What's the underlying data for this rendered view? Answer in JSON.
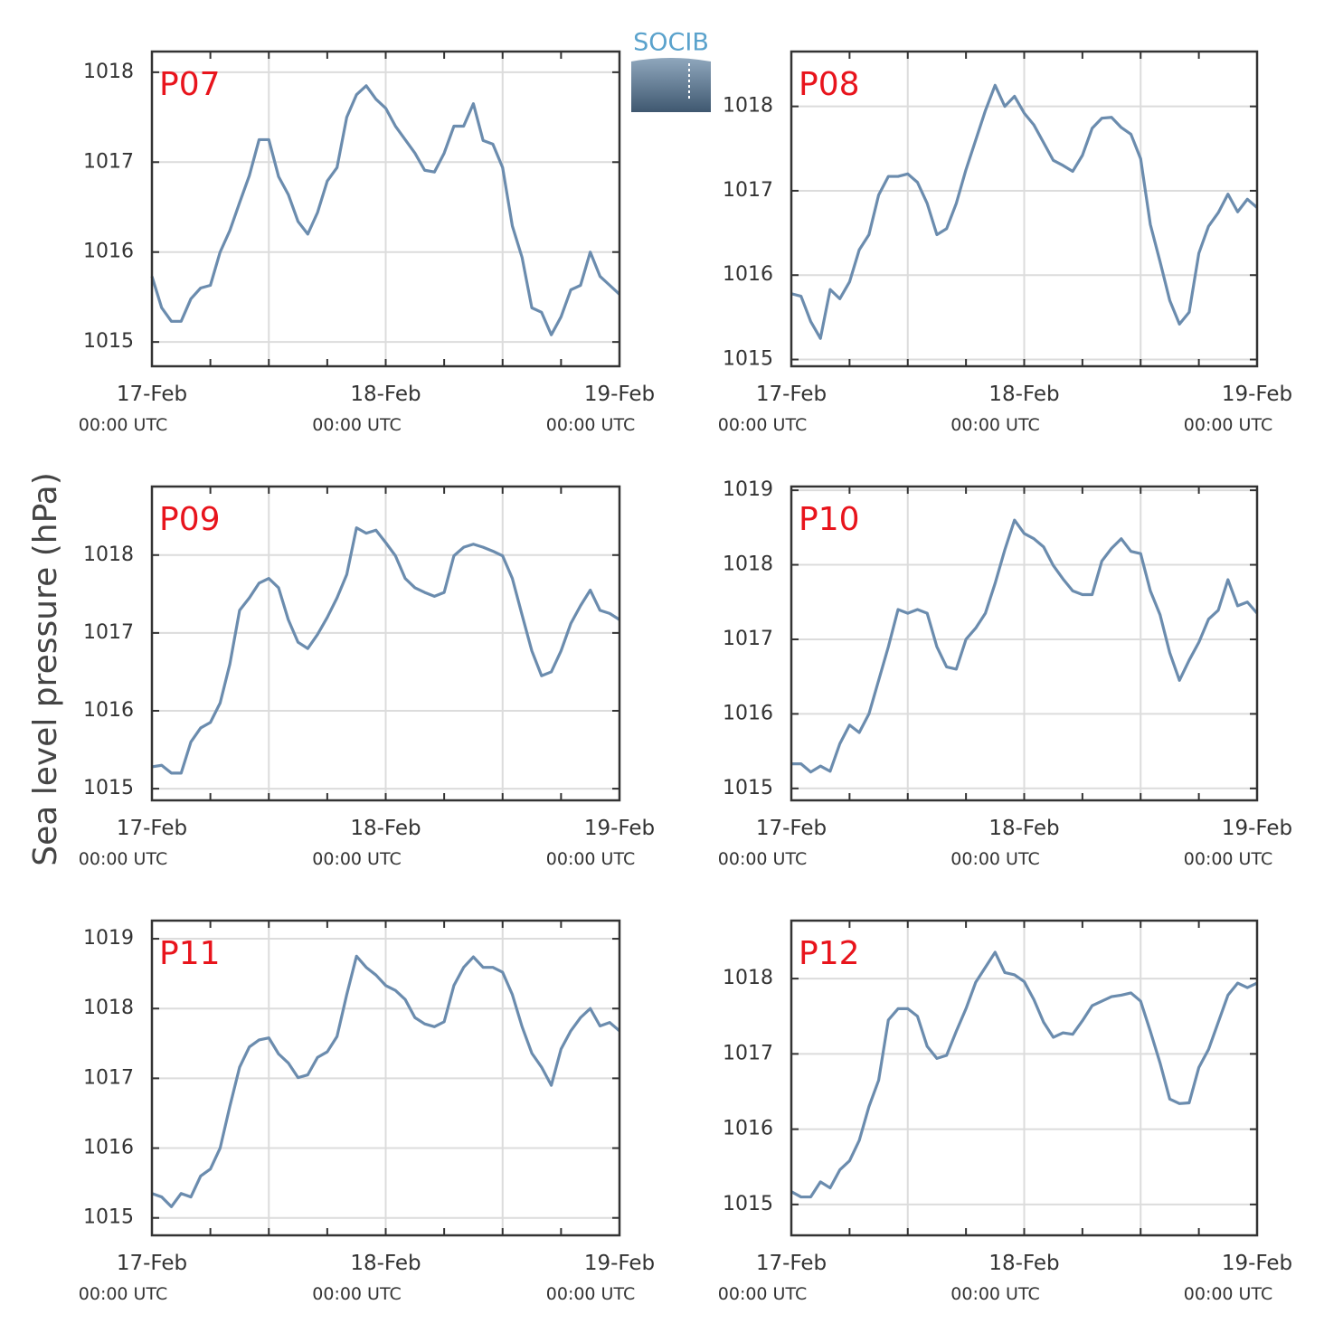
{
  "ylabel": "Sea level pressure (hPa)",
  "logo_text": "SOCIB",
  "chart_data": [
    {
      "type": "line",
      "title": "P07",
      "title_color": "#e8141c",
      "color": "#6b8cae",
      "x": [
        0,
        1,
        2,
        3,
        4,
        5,
        6,
        7,
        8,
        9,
        10,
        11,
        12,
        13,
        14,
        15,
        16,
        17,
        18,
        19,
        20,
        21,
        22,
        23,
        24,
        25,
        26,
        27,
        28,
        29,
        30,
        31,
        32,
        33,
        34,
        35,
        36,
        37,
        38,
        39,
        40,
        41,
        42,
        43,
        44,
        45,
        46,
        47,
        48
      ],
      "values": [
        1015.73,
        1015.38,
        1015.23,
        1015.23,
        1015.48,
        1015.6,
        1015.63,
        1016.0,
        1016.24,
        1016.55,
        1016.85,
        1017.25,
        1017.25,
        1016.84,
        1016.64,
        1016.34,
        1016.2,
        1016.44,
        1016.79,
        1016.94,
        1017.5,
        1017.75,
        1017.85,
        1017.7,
        1017.6,
        1017.4,
        1017.25,
        1017.1,
        1016.91,
        1016.89,
        1017.1,
        1017.4,
        1017.4,
        1017.65,
        1017.24,
        1017.2,
        1016.94,
        1016.29,
        1015.94,
        1015.38,
        1015.33,
        1015.08,
        1015.28,
        1015.58,
        1015.63,
        1016.0,
        1015.73,
        1015.63,
        1015.53
      ],
      "xlim": [
        0,
        48
      ],
      "xticks": [
        {
          "value": 0,
          "label": "17-Feb\n00:00 UTC"
        },
        {
          "value": 24,
          "label": "18-Feb\n00:00 UTC"
        },
        {
          "value": 48,
          "label": "19-Feb\n00:00 UTC"
        }
      ],
      "xminor": [
        6,
        12,
        18,
        30,
        36,
        42
      ],
      "xgrid": [
        12,
        24,
        36
      ],
      "ylim": [
        1014.73,
        1018.23
      ],
      "yticks": [
        1015,
        1016,
        1017,
        1018
      ],
      "grid": true
    },
    {
      "type": "line",
      "title": "P08",
      "title_color": "#e8141c",
      "color": "#6b8cae",
      "x": [
        0,
        1,
        2,
        3,
        4,
        5,
        6,
        7,
        8,
        9,
        10,
        11,
        12,
        13,
        14,
        15,
        16,
        17,
        18,
        19,
        20,
        21,
        22,
        23,
        24,
        25,
        26,
        27,
        28,
        29,
        30,
        31,
        32,
        33,
        34,
        35,
        36,
        37,
        38,
        39,
        40,
        41,
        42,
        43,
        44,
        45,
        46,
        47,
        48
      ],
      "values": [
        1015.78,
        1015.75,
        1015.45,
        1015.25,
        1015.83,
        1015.72,
        1015.92,
        1016.3,
        1016.48,
        1016.95,
        1017.17,
        1017.17,
        1017.2,
        1017.1,
        1016.85,
        1016.48,
        1016.55,
        1016.85,
        1017.25,
        1017.6,
        1017.95,
        1018.25,
        1018.0,
        1018.12,
        1017.92,
        1017.78,
        1017.57,
        1017.36,
        1017.3,
        1017.23,
        1017.42,
        1017.74,
        1017.86,
        1017.87,
        1017.75,
        1017.67,
        1017.38,
        1016.6,
        1016.16,
        1015.7,
        1015.42,
        1015.56,
        1016.26,
        1016.58,
        1016.74,
        1016.96,
        1016.75,
        1016.9,
        1016.8
      ],
      "xlim": [
        0,
        48
      ],
      "xticks": [
        {
          "value": 0,
          "label": "17-Feb\n00:00 UTC"
        },
        {
          "value": 24,
          "label": "18-Feb\n00:00 UTC"
        },
        {
          "value": 48,
          "label": "19-Feb\n00:00 UTC"
        }
      ],
      "xminor": [
        6,
        12,
        18,
        30,
        36,
        42
      ],
      "xgrid": [
        12,
        24,
        36
      ],
      "ylim": [
        1014.92,
        1018.65
      ],
      "yticks": [
        1015,
        1016,
        1017,
        1018
      ],
      "grid": true
    },
    {
      "type": "line",
      "title": "P09",
      "title_color": "#e8141c",
      "color": "#6b8cae",
      "x": [
        0,
        1,
        2,
        3,
        4,
        5,
        6,
        7,
        8,
        9,
        10,
        11,
        12,
        13,
        14,
        15,
        16,
        17,
        18,
        19,
        20,
        21,
        22,
        23,
        24,
        25,
        26,
        27,
        28,
        29,
        30,
        31,
        32,
        33,
        34,
        35,
        36,
        37,
        38,
        39,
        40,
        41,
        42,
        43,
        44,
        45,
        46,
        47,
        48
      ],
      "values": [
        1015.28,
        1015.3,
        1015.2,
        1015.2,
        1015.6,
        1015.78,
        1015.85,
        1016.1,
        1016.6,
        1017.29,
        1017.45,
        1017.64,
        1017.7,
        1017.58,
        1017.17,
        1016.88,
        1016.8,
        1016.98,
        1017.2,
        1017.45,
        1017.75,
        1018.35,
        1018.28,
        1018.32,
        1018.16,
        1017.99,
        1017.7,
        1017.58,
        1017.52,
        1017.47,
        1017.52,
        1017.99,
        1018.1,
        1018.14,
        1018.1,
        1018.05,
        1017.99,
        1017.7,
        1017.23,
        1016.77,
        1016.45,
        1016.5,
        1016.77,
        1017.12,
        1017.35,
        1017.55,
        1017.29,
        1017.25,
        1017.17
      ],
      "xlim": [
        0,
        48
      ],
      "xticks": [
        {
          "value": 0,
          "label": "17-Feb\n00:00 UTC"
        },
        {
          "value": 24,
          "label": "18-Feb\n00:00 UTC"
        },
        {
          "value": 48,
          "label": "19-Feb\n00:00 UTC"
        }
      ],
      "xminor": [
        6,
        12,
        18,
        30,
        36,
        42
      ],
      "xgrid": [
        12,
        24,
        36
      ],
      "ylim": [
        1014.85,
        1018.88
      ],
      "yticks": [
        1015,
        1016,
        1017,
        1018
      ],
      "grid": true
    },
    {
      "type": "line",
      "title": "P10",
      "title_color": "#e8141c",
      "color": "#6b8cae",
      "x": [
        0,
        1,
        2,
        3,
        4,
        5,
        6,
        7,
        8,
        9,
        10,
        11,
        12,
        13,
        14,
        15,
        16,
        17,
        18,
        19,
        20,
        21,
        22,
        23,
        24,
        25,
        26,
        27,
        28,
        29,
        30,
        31,
        32,
        33,
        34,
        35,
        36,
        37,
        38,
        39,
        40,
        41,
        42,
        43,
        44,
        45,
        46,
        47,
        48
      ],
      "values": [
        1015.33,
        1015.33,
        1015.22,
        1015.3,
        1015.23,
        1015.6,
        1015.85,
        1015.75,
        1016.0,
        1016.45,
        1016.9,
        1017.4,
        1017.35,
        1017.4,
        1017.35,
        1016.9,
        1016.63,
        1016.6,
        1017.0,
        1017.15,
        1017.35,
        1017.75,
        1018.2,
        1018.6,
        1018.42,
        1018.35,
        1018.24,
        1017.99,
        1017.81,
        1017.65,
        1017.6,
        1017.6,
        1018.05,
        1018.22,
        1018.35,
        1018.18,
        1018.15,
        1017.65,
        1017.33,
        1016.82,
        1016.45,
        1016.72,
        1016.96,
        1017.27,
        1017.39,
        1017.8,
        1017.45,
        1017.5,
        1017.35
      ],
      "xlim": [
        0,
        48
      ],
      "xticks": [
        {
          "value": 0,
          "label": "17-Feb\n00:00 UTC"
        },
        {
          "value": 24,
          "label": "18-Feb\n00:00 UTC"
        },
        {
          "value": 48,
          "label": "19-Feb\n00:00 UTC"
        }
      ],
      "xminor": [
        6,
        12,
        18,
        30,
        36,
        42
      ],
      "xgrid": [
        12,
        24,
        36
      ],
      "ylim": [
        1014.84,
        1019.05
      ],
      "yticks": [
        1015,
        1016,
        1017,
        1018,
        1019
      ],
      "grid": true
    },
    {
      "type": "line",
      "title": "P11",
      "title_color": "#e8141c",
      "color": "#6b8cae",
      "x": [
        0,
        1,
        2,
        3,
        4,
        5,
        6,
        7,
        8,
        9,
        10,
        11,
        12,
        13,
        14,
        15,
        16,
        17,
        18,
        19,
        20,
        21,
        22,
        23,
        24,
        25,
        26,
        27,
        28,
        29,
        30,
        31,
        32,
        33,
        34,
        35,
        36,
        37,
        38,
        39,
        40,
        41,
        42,
        43,
        44,
        45,
        46,
        47,
        48
      ],
      "values": [
        1015.35,
        1015.3,
        1015.16,
        1015.35,
        1015.3,
        1015.6,
        1015.7,
        1016.0,
        1016.6,
        1017.16,
        1017.45,
        1017.55,
        1017.58,
        1017.35,
        1017.22,
        1017.01,
        1017.05,
        1017.3,
        1017.38,
        1017.6,
        1018.2,
        1018.75,
        1018.59,
        1018.48,
        1018.33,
        1018.26,
        1018.13,
        1017.87,
        1017.78,
        1017.74,
        1017.81,
        1018.33,
        1018.59,
        1018.74,
        1018.59,
        1018.59,
        1018.52,
        1018.2,
        1017.74,
        1017.36,
        1017.16,
        1016.9,
        1017.42,
        1017.68,
        1017.87,
        1018.0,
        1017.75,
        1017.8,
        1017.68
      ],
      "xlim": [
        0,
        48
      ],
      "xticks": [
        {
          "value": 0,
          "label": "17-Feb\n00:00 UTC"
        },
        {
          "value": 24,
          "label": "18-Feb\n00:00 UTC"
        },
        {
          "value": 48,
          "label": "19-Feb\n00:00 UTC"
        }
      ],
      "xminor": [
        6,
        12,
        18,
        30,
        36,
        42
      ],
      "xgrid": [
        12,
        24,
        36
      ],
      "ylim": [
        1014.75,
        1019.26
      ],
      "yticks": [
        1015,
        1016,
        1017,
        1018,
        1019
      ],
      "grid": true
    },
    {
      "type": "line",
      "title": "P12",
      "title_color": "#e8141c",
      "color": "#6b8cae",
      "x": [
        0,
        1,
        2,
        3,
        4,
        5,
        6,
        7,
        8,
        9,
        10,
        11,
        12,
        13,
        14,
        15,
        16,
        17,
        18,
        19,
        20,
        21,
        22,
        23,
        24,
        25,
        26,
        27,
        28,
        29,
        30,
        31,
        32,
        33,
        34,
        35,
        36,
        37,
        38,
        39,
        40,
        41,
        42,
        43,
        44,
        45,
        46,
        47,
        48
      ],
      "values": [
        1015.17,
        1015.1,
        1015.1,
        1015.3,
        1015.22,
        1015.46,
        1015.58,
        1015.85,
        1016.3,
        1016.65,
        1017.45,
        1017.6,
        1017.6,
        1017.5,
        1017.1,
        1016.94,
        1016.98,
        1017.3,
        1017.6,
        1017.95,
        1018.15,
        1018.35,
        1018.08,
        1018.05,
        1017.96,
        1017.72,
        1017.42,
        1017.22,
        1017.28,
        1017.26,
        1017.44,
        1017.64,
        1017.7,
        1017.76,
        1017.78,
        1017.81,
        1017.7,
        1017.3,
        1016.88,
        1016.4,
        1016.34,
        1016.35,
        1016.82,
        1017.06,
        1017.42,
        1017.78,
        1017.94,
        1017.88,
        1017.94
      ],
      "xlim": [
        0,
        48
      ],
      "xticks": [
        {
          "value": 0,
          "label": "17-Feb\n00:00 UTC"
        },
        {
          "value": 24,
          "label": "18-Feb\n00:00 UTC"
        },
        {
          "value": 48,
          "label": "19-Feb\n00:00 UTC"
        }
      ],
      "xminor": [
        6,
        12,
        18,
        30,
        36,
        42
      ],
      "xgrid": [
        12,
        24,
        36
      ],
      "ylim": [
        1014.59,
        1018.77
      ],
      "yticks": [
        1015,
        1016,
        1017,
        1018
      ],
      "grid": true
    }
  ]
}
